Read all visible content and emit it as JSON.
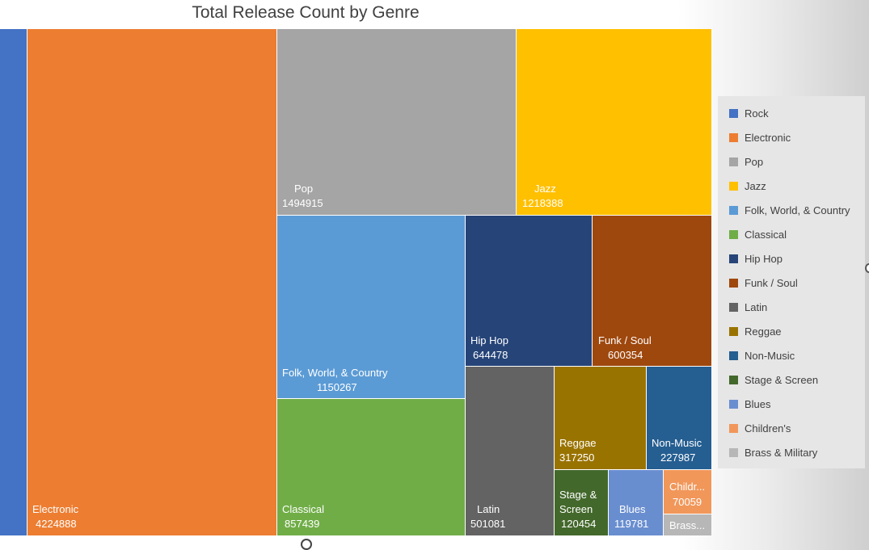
{
  "chart_data": {
    "type": "treemap",
    "title": "Total Release Count by Genre",
    "legend_position": "right",
    "items": [
      {
        "name": "Rock",
        "value": null,
        "label": "",
        "value_label": "",
        "color": "#4472C4"
      },
      {
        "name": "Electronic",
        "value": 4224888,
        "label": "Electronic",
        "value_label": "4224888",
        "color": "#ED7D31"
      },
      {
        "name": "Pop",
        "value": 1494915,
        "label": "Pop",
        "value_label": "1494915",
        "color": "#A5A5A5"
      },
      {
        "name": "Jazz",
        "value": 1218388,
        "label": "Jazz",
        "value_label": "1218388",
        "color": "#FFC000"
      },
      {
        "name": "Folk, World, & Country",
        "value": 1150267,
        "label": "Folk, World, & Country",
        "value_label": "1150267",
        "color": "#5B9BD5"
      },
      {
        "name": "Classical",
        "value": 857439,
        "label": "Classical",
        "value_label": "857439",
        "color": "#70AD47"
      },
      {
        "name": "Hip Hop",
        "value": 644478,
        "label": "Hip Hop",
        "value_label": "644478",
        "color": "#264478"
      },
      {
        "name": "Funk / Soul",
        "value": 600354,
        "label": "Funk / Soul",
        "value_label": "600354",
        "color": "#9E480E"
      },
      {
        "name": "Latin",
        "value": 501081,
        "label": "Latin",
        "value_label": "501081",
        "color": "#636363"
      },
      {
        "name": "Reggae",
        "value": 317250,
        "label": "Reggae",
        "value_label": "317250",
        "color": "#997300"
      },
      {
        "name": "Non-Music",
        "value": 227987,
        "label": "Non-Music",
        "value_label": "227987",
        "color": "#255E91"
      },
      {
        "name": "Stage & Screen",
        "value": 120454,
        "label": "Stage & Screen",
        "value_label": "120454",
        "color": "#43682B"
      },
      {
        "name": "Blues",
        "value": 119781,
        "label": "Blues",
        "value_label": "119781",
        "color": "#698ED0"
      },
      {
        "name": "Children's",
        "value": 70059,
        "label": "Childr...",
        "value_label": "70059",
        "color": "#F1975A"
      },
      {
        "name": "Brass & Military",
        "value": null,
        "label": "Brass...",
        "value_label": "",
        "color": "#B7B7B7"
      }
    ]
  }
}
